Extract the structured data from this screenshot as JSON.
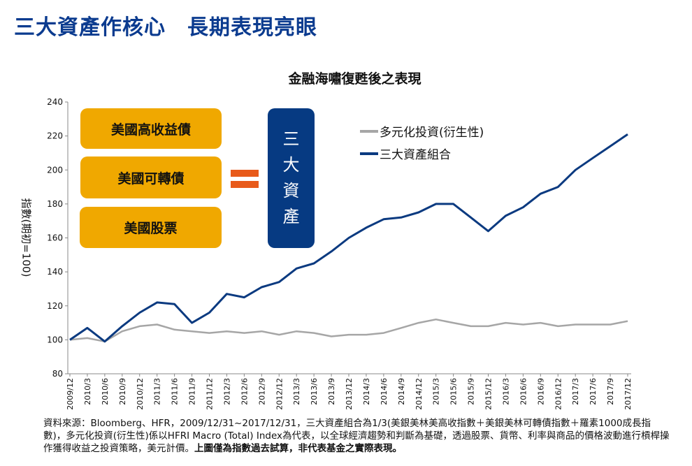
{
  "page_title": "三大資產作核心　長期表現亮眼",
  "boxes": [
    "美國高收益債",
    "美國可轉債",
    "美國股票"
  ],
  "blue_box": [
    "三",
    "大",
    "資",
    "產"
  ],
  "footnote": {
    "normal": "資料來源：Bloomberg、HFR，2009/12/31~2017/12/31，三大資產組合為1/3(美銀美林美高收指數＋美銀美林可轉債指數＋羅素1000成長指數)，多元化投資(衍生性)係以HFRI Macro (Total) Index為代表，以全球經濟趨勢和判斷為基礎，透過股票、貨幣、利率與商品的價格波動進行槓桿操作獲得收益之投資策略，美元計價。",
    "bold": "上圖僅為指數過去試算，非代表基金之實際表現。"
  },
  "colors": {
    "title": "#0b3b8f",
    "portfolio": "#0b3a80",
    "diversified": "#a6a6a6",
    "box": "#f0a800",
    "equals": "#e85a1a"
  },
  "chart_data": {
    "type": "line",
    "title": "金融海嘯復甦後之表現",
    "xlabel": "",
    "ylabel": "指數(期初=100)",
    "ylim": [
      80,
      240
    ],
    "yticks": [
      80,
      100,
      120,
      140,
      160,
      180,
      200,
      220,
      240
    ],
    "grid": false,
    "legend_position": "top-right",
    "categories": [
      "2009/12",
      "2010/3",
      "2010/6",
      "2010/9",
      "2010/12",
      "2011/3",
      "2011/6",
      "2011/9",
      "2011/12",
      "2012/3",
      "2012/6",
      "2012/9",
      "2012/12",
      "2013/3",
      "2013/6",
      "2013/9",
      "2013/12",
      "2014/3",
      "2014/6",
      "2014/9",
      "2014/12",
      "2015/3",
      "2015/6",
      "2015/9",
      "2015/12",
      "2016/3",
      "2016/6",
      "2016/9",
      "2016/12",
      "2017/3",
      "2017/6",
      "2017/9",
      "2017/12"
    ],
    "series": [
      {
        "name": "多元化投資(衍生性)",
        "color": "#a6a6a6",
        "values": [
          100,
          101,
          99,
          105,
          108,
          109,
          106,
          105,
          104,
          105,
          104,
          105,
          103,
          105,
          104,
          102,
          103,
          103,
          104,
          107,
          110,
          112,
          110,
          108,
          108,
          110,
          109,
          110,
          108,
          109,
          109,
          109,
          111
        ]
      },
      {
        "name": "三大資產組合",
        "color": "#0b3a80",
        "values": [
          100,
          107,
          99,
          108,
          116,
          122,
          121,
          110,
          116,
          127,
          125,
          131,
          134,
          142,
          145,
          152,
          160,
          166,
          171,
          172,
          175,
          180,
          180,
          172,
          164,
          173,
          178,
          186,
          190,
          200,
          207,
          214,
          221
        ]
      }
    ]
  }
}
